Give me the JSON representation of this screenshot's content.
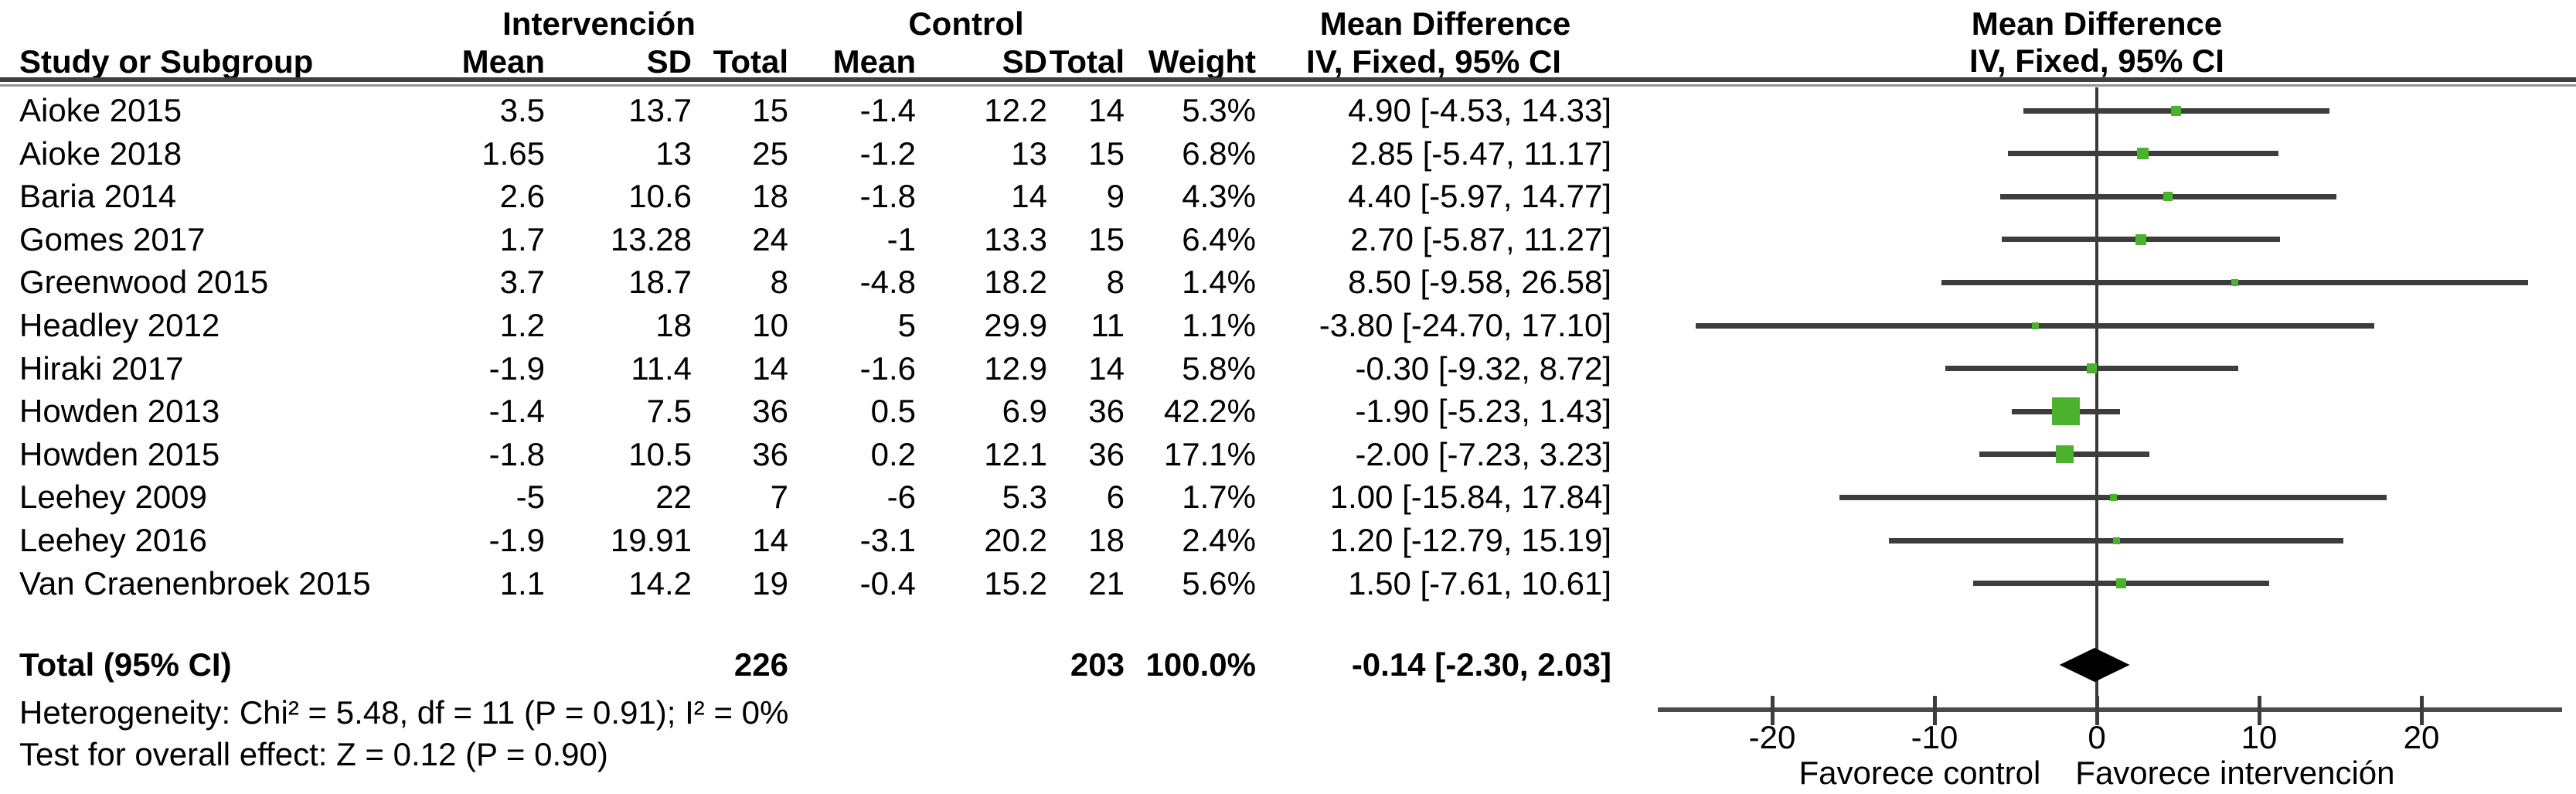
{
  "header": {
    "study_col": "Study or Subgroup",
    "group_intervention": "Intervención",
    "group_control": "Control",
    "col_mean_i": "Mean",
    "col_sd_i": "SD",
    "col_total_i": "Total",
    "col_mean_c": "Mean",
    "col_sd_c": "SD",
    "col_total_c": "Total",
    "col_weight": "Weight",
    "effect_title": "Mean Difference",
    "effect_subtitle": "IV, Fixed, 95% CI",
    "plot_title": "Mean Difference",
    "plot_subtitle": "IV, Fixed, 95% CI"
  },
  "chart_data": {
    "type": "forest",
    "effect_measure": "Mean Difference",
    "model": "IV, Fixed, 95% CI",
    "x_tick_values": [
      -20,
      -10,
      0,
      10,
      20
    ],
    "x_ticks": [
      "-20",
      "-10",
      "0",
      "10",
      "20"
    ],
    "favors_left": "Favorece control",
    "favors_right": "Favorece intervención",
    "studies": [
      {
        "name": "Aioke 2015",
        "mean_i": "3.5",
        "sd_i": "13.7",
        "n_i": "15",
        "mean_c": "-1.4",
        "sd_c": "12.2",
        "n_c": "14",
        "weight": "5.3%",
        "ci_text": "4.90 [-4.53, 14.33]",
        "est": 4.9,
        "lo": -4.53,
        "hi": 14.33,
        "w": 5.3
      },
      {
        "name": "Aioke 2018",
        "mean_i": "1.65",
        "sd_i": "13",
        "n_i": "25",
        "mean_c": "-1.2",
        "sd_c": "13",
        "n_c": "15",
        "weight": "6.8%",
        "ci_text": "2.85 [-5.47, 11.17]",
        "est": 2.85,
        "lo": -5.47,
        "hi": 11.17,
        "w": 6.8
      },
      {
        "name": "Baria 2014",
        "mean_i": "2.6",
        "sd_i": "10.6",
        "n_i": "18",
        "mean_c": "-1.8",
        "sd_c": "14",
        "n_c": "9",
        "weight": "4.3%",
        "ci_text": "4.40 [-5.97, 14.77]",
        "est": 4.4,
        "lo": -5.97,
        "hi": 14.77,
        "w": 4.3
      },
      {
        "name": "Gomes 2017",
        "mean_i": "1.7",
        "sd_i": "13.28",
        "n_i": "24",
        "mean_c": "-1",
        "sd_c": "13.3",
        "n_c": "15",
        "weight": "6.4%",
        "ci_text": "2.70 [-5.87, 11.27]",
        "est": 2.7,
        "lo": -5.87,
        "hi": 11.27,
        "w": 6.4
      },
      {
        "name": "Greenwood 2015",
        "mean_i": "3.7",
        "sd_i": "18.7",
        "n_i": "8",
        "mean_c": "-4.8",
        "sd_c": "18.2",
        "n_c": "8",
        "weight": "1.4%",
        "ci_text": "8.50 [-9.58, 26.58]",
        "est": 8.5,
        "lo": -9.58,
        "hi": 26.58,
        "w": 1.4
      },
      {
        "name": "Headley 2012",
        "mean_i": "1.2",
        "sd_i": "18",
        "n_i": "10",
        "mean_c": "5",
        "sd_c": "29.9",
        "n_c": "11",
        "weight": "1.1%",
        "ci_text": "-3.80 [-24.70, 17.10]",
        "est": -3.8,
        "lo": -24.7,
        "hi": 17.1,
        "w": 1.1
      },
      {
        "name": "Hiraki 2017",
        "mean_i": "-1.9",
        "sd_i": "11.4",
        "n_i": "14",
        "mean_c": "-1.6",
        "sd_c": "12.9",
        "n_c": "14",
        "weight": "5.8%",
        "ci_text": "-0.30 [-9.32, 8.72]",
        "est": -0.3,
        "lo": -9.32,
        "hi": 8.72,
        "w": 5.8
      },
      {
        "name": "Howden 2013",
        "mean_i": "-1.4",
        "sd_i": "7.5",
        "n_i": "36",
        "mean_c": "0.5",
        "sd_c": "6.9",
        "n_c": "36",
        "weight": "42.2%",
        "ci_text": "-1.90 [-5.23, 1.43]",
        "est": -1.9,
        "lo": -5.23,
        "hi": 1.43,
        "w": 42.2
      },
      {
        "name": "Howden 2015",
        "mean_i": "-1.8",
        "sd_i": "10.5",
        "n_i": "36",
        "mean_c": "0.2",
        "sd_c": "12.1",
        "n_c": "36",
        "weight": "17.1%",
        "ci_text": "-2.00 [-7.23, 3.23]",
        "est": -2.0,
        "lo": -7.23,
        "hi": 3.23,
        "w": 17.1
      },
      {
        "name": "Leehey 2009",
        "mean_i": "-5",
        "sd_i": "22",
        "n_i": "7",
        "mean_c": "-6",
        "sd_c": "5.3",
        "n_c": "6",
        "weight": "1.7%",
        "ci_text": "1.00 [-15.84, 17.84]",
        "est": 1.0,
        "lo": -15.84,
        "hi": 17.84,
        "w": 1.7
      },
      {
        "name": "Leehey 2016",
        "mean_i": "-1.9",
        "sd_i": "19.91",
        "n_i": "14",
        "mean_c": "-3.1",
        "sd_c": "20.2",
        "n_c": "18",
        "weight": "2.4%",
        "ci_text": "1.20 [-12.79, 15.19]",
        "est": 1.2,
        "lo": -12.79,
        "hi": 15.19,
        "w": 2.4
      },
      {
        "name": "Van Craenenbroek 2015",
        "mean_i": "1.1",
        "sd_i": "14.2",
        "n_i": "19",
        "mean_c": "-0.4",
        "sd_c": "15.2",
        "n_c": "21",
        "weight": "5.6%",
        "ci_text": "1.50 [-7.61, 10.61]",
        "est": 1.5,
        "lo": -7.61,
        "hi": 10.61,
        "w": 5.6
      }
    ],
    "total": {
      "label": "Total (95% CI)",
      "n_i": "226",
      "n_c": "203",
      "weight": "100.0%",
      "ci_text": "-0.14 [-2.30, 2.03]",
      "est": -0.14,
      "lo": -2.3,
      "hi": 2.03
    },
    "square_color": "#4cb22e",
    "line_color": "#3d3d3d"
  },
  "footnotes": {
    "heterogeneity": "Heterogeneity: Chi² = 5.48, df = 11 (P = 0.91); I² = 0%",
    "overall_effect": "Test for overall effect: Z = 0.12 (P = 0.90)"
  }
}
